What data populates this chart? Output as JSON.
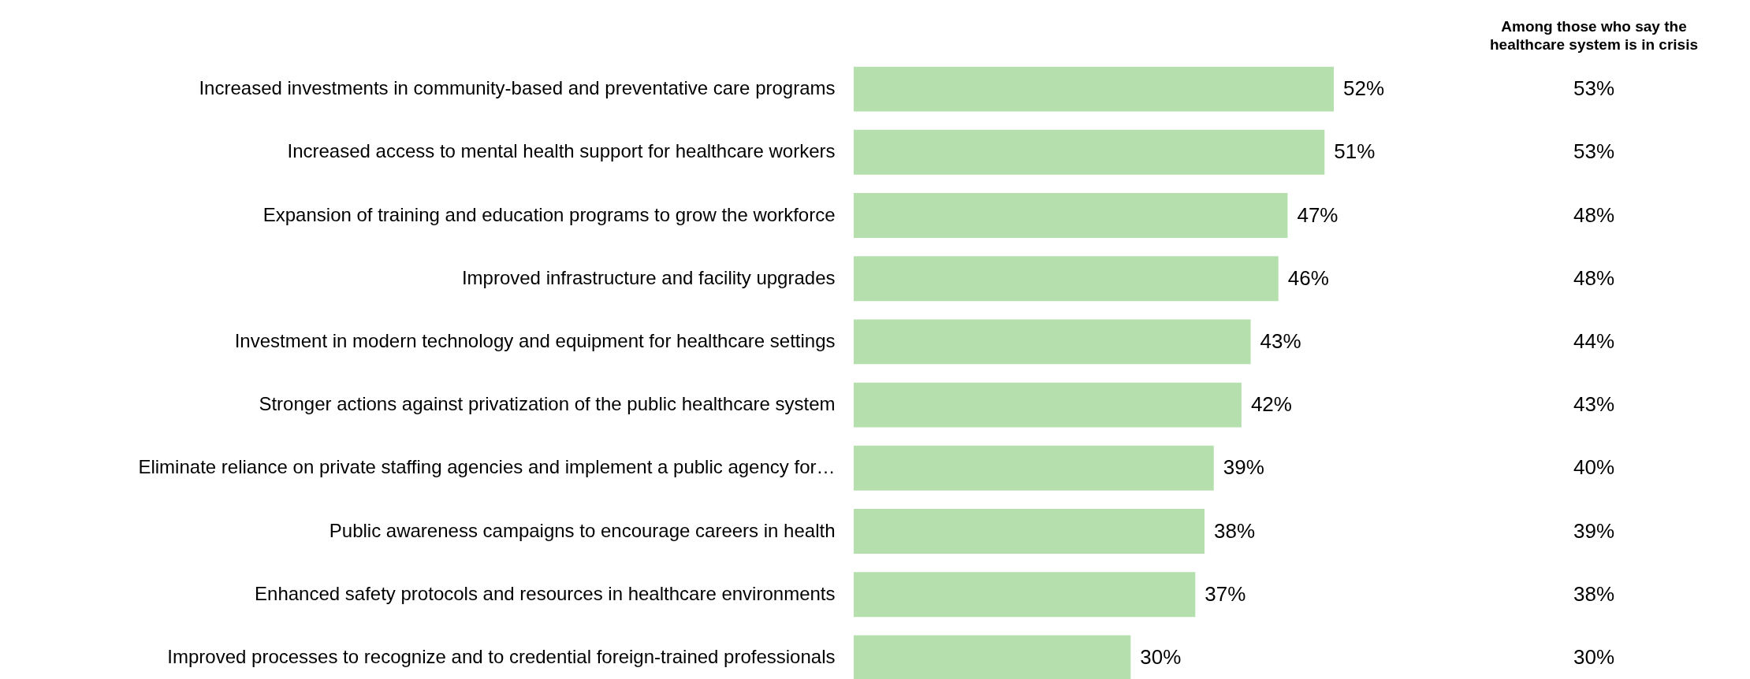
{
  "chart_data": [
    {
      "type": "bar",
      "orientation": "horizontal",
      "categories": [
        "Increased investments in community-based and preventative care programs",
        "Increased access to mental health support for healthcare workers",
        "Expansion of training and education programs to grow the workforce",
        "Improved infrastructure and facility upgrades",
        "Investment in modern technology and equipment for healthcare settings",
        "Stronger actions against privatization of the public healthcare system",
        "Eliminate reliance on private staffing agencies and implement a public agency for…",
        "Public awareness campaigns to encourage careers in health",
        "Enhanced safety protocols and resources in healthcare environments",
        "Improved processes to recognize and to credential foreign-trained professionals"
      ],
      "values": [
        52,
        51,
        47,
        46,
        43,
        42,
        39,
        38,
        37,
        30
      ],
      "value_labels": [
        "52%",
        "51%",
        "47%",
        "46%",
        "43%",
        "42%",
        "39%",
        "38%",
        "37%",
        "30%"
      ],
      "color": "#b5e0ad"
    },
    {
      "type": "other",
      "title": "Among those who say the healthcare system is in crisis",
      "annotations": [
        "53%",
        "53%",
        "48%",
        "48%",
        "44%",
        "43%",
        "40%",
        "39%",
        "38%",
        "30%"
      ]
    }
  ]
}
